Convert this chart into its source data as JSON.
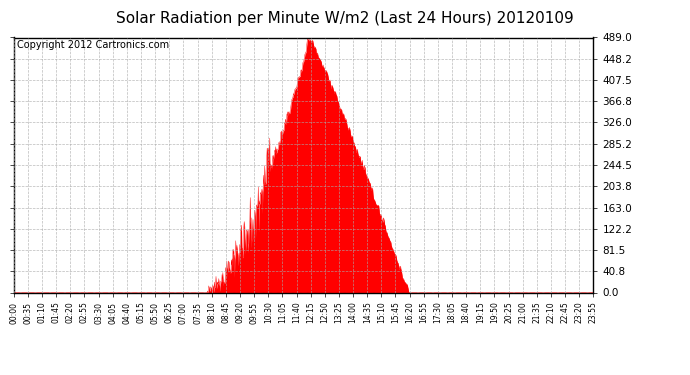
{
  "title": "Solar Radiation per Minute W/m2 (Last 24 Hours) 20120109",
  "copyright": "Copyright 2012 Cartronics.com",
  "yticks": [
    0.0,
    40.8,
    81.5,
    122.2,
    163.0,
    203.8,
    244.5,
    285.2,
    326.0,
    366.8,
    407.5,
    448.2,
    489.0
  ],
  "ymax": 489.0,
  "ymin": 0.0,
  "fill_color": "#FF0000",
  "line_color": "#FF0000",
  "bg_color": "#FFFFFF",
  "grid_color": "#AAAAAA",
  "dashed_line_color": "#FF0000",
  "title_fontsize": 11,
  "copyright_fontsize": 7,
  "xtick_labels": [
    "00:00",
    "00:35",
    "01:10",
    "01:45",
    "02:20",
    "02:55",
    "03:30",
    "04:05",
    "04:40",
    "05:15",
    "05:50",
    "06:25",
    "07:00",
    "07:35",
    "08:10",
    "08:45",
    "09:20",
    "09:55",
    "10:30",
    "11:05",
    "11:40",
    "12:15",
    "12:50",
    "13:25",
    "14:00",
    "14:35",
    "15:10",
    "15:45",
    "16:20",
    "16:55",
    "17:30",
    "18:05",
    "18:40",
    "19:15",
    "19:50",
    "20:25",
    "21:00",
    "21:35",
    "22:10",
    "22:45",
    "23:20",
    "23:55"
  ],
  "num_points": 1440,
  "rise_minute": 480,
  "peak_minute": 735,
  "set_minute": 980,
  "peak_value": 489.0
}
